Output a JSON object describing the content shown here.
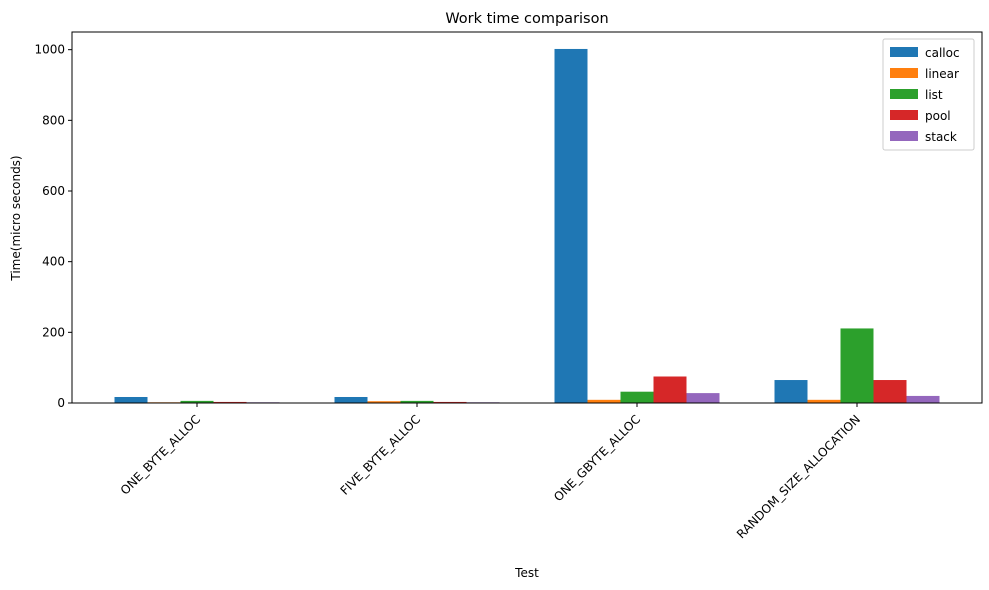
{
  "chart_data": {
    "type": "bar",
    "title": "Work time comparison",
    "xlabel": "Test",
    "ylabel": "Time(micro seconds)",
    "categories": [
      "ONE_BYTE_ALLOC",
      "FIVE_BYTE_ALLOC",
      "ONE_GBYTE_ALLOC",
      "RANDOM_SIZE_ALLOCATION"
    ],
    "ylim": [
      0,
      1050
    ],
    "yticks": [
      0,
      200,
      400,
      600,
      800,
      1000
    ],
    "grid": false,
    "legend_position": "top-right",
    "series": [
      {
        "name": "calloc",
        "color": "#1f77b4",
        "values": [
          17,
          17,
          1002,
          65
        ]
      },
      {
        "name": "linear",
        "color": "#ff7f0e",
        "values": [
          2,
          5,
          9,
          9
        ]
      },
      {
        "name": "list",
        "color": "#2ca02c",
        "values": [
          6,
          6,
          32,
          211
        ]
      },
      {
        "name": "pool",
        "color": "#d62728",
        "values": [
          3,
          3,
          75,
          65
        ]
      },
      {
        "name": "stack",
        "color": "#9467bd",
        "values": [
          2,
          2,
          28,
          20
        ]
      }
    ]
  }
}
